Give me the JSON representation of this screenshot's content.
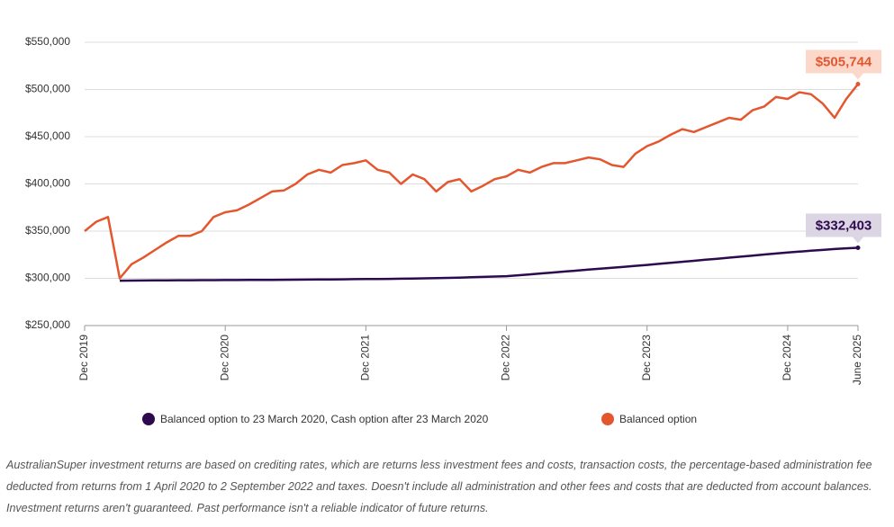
{
  "chart_data": {
    "type": "line",
    "x": [
      "Dec 2019",
      "Jan 2020",
      "Feb 2020",
      "Mar 2020",
      "Apr 2020",
      "May 2020",
      "Jun 2020",
      "Jul 2020",
      "Aug 2020",
      "Sep 2020",
      "Oct 2020",
      "Nov 2020",
      "Dec 2020",
      "Jan 2021",
      "Feb 2021",
      "Mar 2021",
      "Apr 2021",
      "May 2021",
      "Jun 2021",
      "Jul 2021",
      "Aug 2021",
      "Sep 2021",
      "Oct 2021",
      "Nov 2021",
      "Dec 2021",
      "Jan 2022",
      "Feb 2022",
      "Mar 2022",
      "Apr 2022",
      "May 2022",
      "Jun 2022",
      "Jul 2022",
      "Aug 2022",
      "Sep 2022",
      "Oct 2022",
      "Nov 2022",
      "Dec 2022",
      "Jan 2023",
      "Feb 2023",
      "Mar 2023",
      "Apr 2023",
      "May 2023",
      "Jun 2023",
      "Jul 2023",
      "Aug 2023",
      "Sep 2023",
      "Oct 2023",
      "Nov 2023",
      "Dec 2023",
      "Jan 2024",
      "Feb 2024",
      "Mar 2024",
      "Apr 2024",
      "May 2024",
      "Jun 2024",
      "Jul 2024",
      "Aug 2024",
      "Sep 2024",
      "Oct 2024",
      "Nov 2024",
      "Dec 2024",
      "Jan 2025",
      "Feb 2025",
      "Mar 2025",
      "Apr 2025",
      "May 2025",
      "Jun 2025"
    ],
    "xticks": [
      "Dec 2019",
      "Dec 2020",
      "Dec 2021",
      "Dec 2022",
      "Dec 2023",
      "Dec 2024",
      "June 2025"
    ],
    "ylim": [
      250000,
      550000
    ],
    "yticks": [
      {
        "value": 250000,
        "label": "$250,000"
      },
      {
        "value": 300000,
        "label": "$300,000"
      },
      {
        "value": 350000,
        "label": "$350,000"
      },
      {
        "value": 400000,
        "label": "$400,000"
      },
      {
        "value": 450000,
        "label": "$450,000"
      },
      {
        "value": 500000,
        "label": "$500,000"
      },
      {
        "value": 550000,
        "label": "$550,000"
      }
    ],
    "grid": true,
    "series": [
      {
        "name": "Balanced option to 23 March 2020, Cash option after 23 March 2020",
        "color": "#2d0a4e",
        "label_fill": "#dcd5e3",
        "values": [
          null,
          null,
          null,
          297500,
          297600,
          297700,
          297800,
          297900,
          298000,
          298000,
          298100,
          298100,
          298200,
          298200,
          298300,
          298400,
          298400,
          298500,
          298600,
          298700,
          298800,
          298900,
          299000,
          299100,
          299200,
          299300,
          299400,
          299600,
          299800,
          300000,
          300200,
          300500,
          300800,
          301100,
          301500,
          301900,
          302300,
          303200,
          304200,
          305200,
          306200,
          307200,
          308200,
          309200,
          310200,
          311200,
          312200,
          313200,
          314200,
          315300,
          316400,
          317500,
          318600,
          319700,
          320800,
          321900,
          323000,
          324100,
          325200,
          326300,
          327400,
          328300,
          329200,
          330100,
          331000,
          331800,
          332403
        ],
        "value_labels": [
          null,
          null,
          null,
          null,
          null,
          null,
          null,
          null,
          null,
          null,
          null,
          null,
          null,
          null,
          null,
          null,
          null,
          null,
          null,
          null,
          null,
          null,
          null,
          null,
          null,
          null,
          null,
          null,
          null,
          null,
          null,
          null,
          null,
          null,
          null,
          null,
          null,
          null,
          null,
          null,
          null,
          null,
          null,
          null,
          null,
          null,
          null,
          null,
          null,
          null,
          null,
          null,
          null,
          null,
          null,
          null,
          null,
          null,
          null,
          null,
          null,
          null,
          null,
          null,
          null,
          null,
          "$332,403"
        ]
      },
      {
        "name": "Balanced option",
        "color": "#e4572e",
        "label_fill": "#fbd8ca",
        "values": [
          350000,
          360000,
          365000,
          300000,
          315000,
          322000,
          330000,
          338000,
          345000,
          345000,
          350000,
          365000,
          370000,
          372000,
          378000,
          385000,
          392000,
          393000,
          400000,
          410000,
          415000,
          412000,
          420000,
          422000,
          425000,
          415000,
          412000,
          400000,
          410000,
          405000,
          392000,
          402000,
          405000,
          392000,
          398000,
          405000,
          408000,
          415000,
          412000,
          418000,
          422000,
          422000,
          425000,
          428000,
          426000,
          420000,
          418000,
          432000,
          440000,
          445000,
          452000,
          458000,
          455000,
          460000,
          465000,
          470000,
          468000,
          478000,
          482000,
          492000,
          490000,
          497000,
          495000,
          485000,
          470000,
          490000,
          505744
        ],
        "value_labels": [
          null,
          null,
          null,
          null,
          null,
          null,
          null,
          null,
          null,
          null,
          null,
          null,
          null,
          null,
          null,
          null,
          null,
          null,
          null,
          null,
          null,
          null,
          null,
          null,
          null,
          null,
          null,
          null,
          null,
          null,
          null,
          null,
          null,
          null,
          null,
          null,
          null,
          null,
          null,
          null,
          null,
          null,
          null,
          null,
          null,
          null,
          null,
          null,
          null,
          null,
          null,
          null,
          null,
          null,
          null,
          null,
          null,
          null,
          null,
          null,
          null,
          null,
          null,
          null,
          null,
          null,
          "$505,744"
        ]
      }
    ]
  },
  "note": "AustralianSuper investment returns are based on crediting rates, which are returns less investment fees and costs, transaction costs, the percentage-based administration fee deducted from returns from 1 April 2020 to 2 September 2022 and taxes. Doesn't include all administration and other fees and costs that are deducted from account balances. Investment returns aren't guaranteed. Past performance isn't a reliable indicator of future returns."
}
